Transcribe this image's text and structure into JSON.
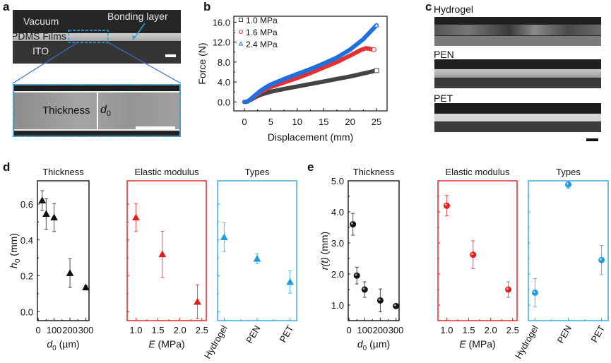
{
  "panels": {
    "a": {
      "letter": "a",
      "labels": {
        "vacuum": "Vacuum",
        "pdms": "PDMS Films",
        "ito": "ITO",
        "bonding": "Bonding layer",
        "thickness": "Thickness",
        "d0": "d",
        "d0_sub": "0"
      },
      "colors": {
        "inset_border": "#29a8e0",
        "zoom_lines": "#3a6fd0",
        "arrow": "#29a8e0"
      }
    },
    "b": {
      "letter": "b"
    },
    "c": {
      "letter": "c",
      "samples": [
        "Hydrogel",
        "PEN",
        "PET"
      ]
    },
    "d": {
      "letter": "d"
    },
    "e": {
      "letter": "e"
    }
  },
  "chart_data": [
    {
      "id": "b",
      "type": "line",
      "title": "",
      "xlabel": "Displacement (mm)",
      "ylabel": "Force (N)",
      "xlim": [
        -2,
        27
      ],
      "ylim": [
        -1.8,
        17.2
      ],
      "xticks": [
        0,
        5,
        10,
        15,
        20,
        25
      ],
      "yticks": [
        0.0,
        4.0,
        8.0,
        12.0,
        16.0
      ],
      "ytick_labels": [
        "0.0",
        "4.0",
        "8.0",
        "12.0",
        "16.0"
      ],
      "legend": "top-left",
      "series": [
        {
          "name": "1.0 MPa",
          "color": "#444444",
          "marker": "square",
          "x": [
            0,
            0.5,
            1,
            2,
            3,
            4,
            5,
            7.5,
            10,
            12.5,
            15,
            17.5,
            20,
            22.5,
            25
          ],
          "y": [
            0,
            0.05,
            0.3,
            0.9,
            1.4,
            1.75,
            2.05,
            2.6,
            3.1,
            3.6,
            4.1,
            4.6,
            5.1,
            5.7,
            6.3
          ]
        },
        {
          "name": "1.6 MPa",
          "color": "#e63030",
          "marker": "circle",
          "x": [
            0,
            0.5,
            1,
            2,
            3,
            4,
            5,
            7.5,
            10,
            12.5,
            15,
            17.5,
            20,
            22,
            23,
            24,
            24.5
          ],
          "y": [
            0,
            0.05,
            0.35,
            1.1,
            1.9,
            2.5,
            3.0,
            3.9,
            4.8,
            5.8,
            6.9,
            8.0,
            9.3,
            10.4,
            10.8,
            10.6,
            10.5
          ]
        },
        {
          "name": "2.4 MPa",
          "color": "#1f6fe0",
          "marker": "triangle",
          "x": [
            0,
            0.5,
            1,
            2,
            3,
            4,
            5,
            7.5,
            10,
            12.5,
            15,
            17.5,
            20,
            22.5,
            25
          ],
          "y": [
            0,
            0.05,
            0.4,
            1.3,
            2.2,
            2.9,
            3.5,
            4.6,
            5.6,
            6.6,
            7.7,
            8.9,
            10.5,
            12.6,
            15.4
          ]
        }
      ]
    },
    {
      "id": "d",
      "type": "scatter",
      "ylabel": "h",
      "ylabel_sub": "0",
      "ylabel_unit": " (mm)",
      "ylim": [
        -0.05,
        0.73
      ],
      "yticks": [
        0.0,
        0.2,
        0.4,
        0.6
      ],
      "ytick_labels": [
        "0.0",
        "0.2",
        "0.4",
        "0.6"
      ],
      "marker": "triangle",
      "subplots": [
        {
          "title": "Thickness",
          "color": "#111111",
          "frame_color": "#111111",
          "xlabel": "d",
          "xlabel_sub": "0",
          "xlabel_unit": " (µm)",
          "xlim": [
            -5,
            320
          ],
          "xticks": [
            0,
            100,
            200,
            300
          ],
          "xtick_labels": [
            "0",
            "100",
            "200",
            "300"
          ],
          "x": [
            25,
            50,
            100,
            200,
            300
          ],
          "y": [
            0.62,
            0.545,
            0.525,
            0.215,
            0.135
          ],
          "err": [
            0.055,
            0.085,
            0.078,
            0.08,
            0.01
          ]
        },
        {
          "title": "Elastic modulus",
          "color": "#e51a1a",
          "frame_color": "#e51a1a",
          "xlabel": "E",
          "xlabel_unit": " (MPa)",
          "xlim": [
            0.8,
            2.6
          ],
          "xticks": [
            1.0,
            1.5,
            2.0,
            2.5
          ],
          "xtick_labels": [
            "1.0",
            "1.5",
            "2.0",
            "2.5"
          ],
          "x": [
            1.0,
            1.6,
            2.4
          ],
          "y": [
            0.525,
            0.32,
            0.055
          ],
          "err": [
            0.078,
            0.128,
            0.095
          ]
        },
        {
          "title": "Types",
          "color": "#1e9be0",
          "frame_color": "#29a8e0",
          "xlabel": "",
          "categorical": true,
          "xlim": [
            -0.2,
            2.2
          ],
          "xticks": [
            0,
            1,
            2
          ],
          "xtick_labels": [
            "Hydrogel",
            "PEN",
            "PET"
          ],
          "x": [
            0,
            1,
            2
          ],
          "y": [
            0.415,
            0.295,
            0.165
          ],
          "err": [
            0.08,
            0.027,
            0.062
          ]
        }
      ]
    },
    {
      "id": "e",
      "type": "scatter",
      "ylabel": "r(t)",
      "ylabel_unit": " (mm)",
      "ylim": [
        0.5,
        5.0
      ],
      "yticks": [
        1.0,
        2.0,
        3.0,
        4.0,
        5.0
      ],
      "ytick_labels": [
        "1.0",
        "2.0",
        "3.0",
        "4.0",
        "5.0"
      ],
      "marker": "circle",
      "subplots": [
        {
          "title": "Thickness",
          "color": "#111111",
          "frame_color": "#111111",
          "xlabel": "d",
          "xlabel_sub": "0",
          "xlabel_unit": " (µm)",
          "xlim": [
            -5,
            320
          ],
          "xticks": [
            0,
            100,
            200,
            300
          ],
          "xtick_labels": [
            "0",
            "100",
            "200",
            "300"
          ],
          "x": [
            25,
            50,
            100,
            200,
            300
          ],
          "y": [
            3.6,
            1.95,
            1.5,
            1.15,
            0.97
          ],
          "err": [
            0.35,
            0.27,
            0.25,
            0.37,
            0.05
          ]
        },
        {
          "title": "Elastic modulus",
          "color": "#e51a1a",
          "frame_color": "#e51a1a",
          "xlabel": "E",
          "xlabel_unit": " (MPa)",
          "xlim": [
            0.8,
            2.6
          ],
          "xticks": [
            1.0,
            1.5,
            2.0,
            2.5
          ],
          "xtick_labels": [
            "1.0",
            "1.5",
            "2.0",
            "2.5"
          ],
          "x": [
            1.0,
            1.6,
            2.4
          ],
          "y": [
            4.2,
            2.62,
            1.5
          ],
          "err": [
            0.33,
            0.45,
            0.25
          ]
        },
        {
          "title": "Types",
          "color": "#1e9be0",
          "frame_color": "#29a8e0",
          "xlabel": "",
          "categorical": true,
          "xlim": [
            -0.2,
            2.2
          ],
          "xticks": [
            0,
            1,
            2
          ],
          "xtick_labels": [
            "Hydrogel",
            "PEN",
            "PET"
          ],
          "x": [
            0,
            1,
            2
          ],
          "y": [
            1.4,
            4.88,
            2.45
          ],
          "err": [
            0.45,
            0.12,
            0.47
          ]
        }
      ]
    }
  ]
}
